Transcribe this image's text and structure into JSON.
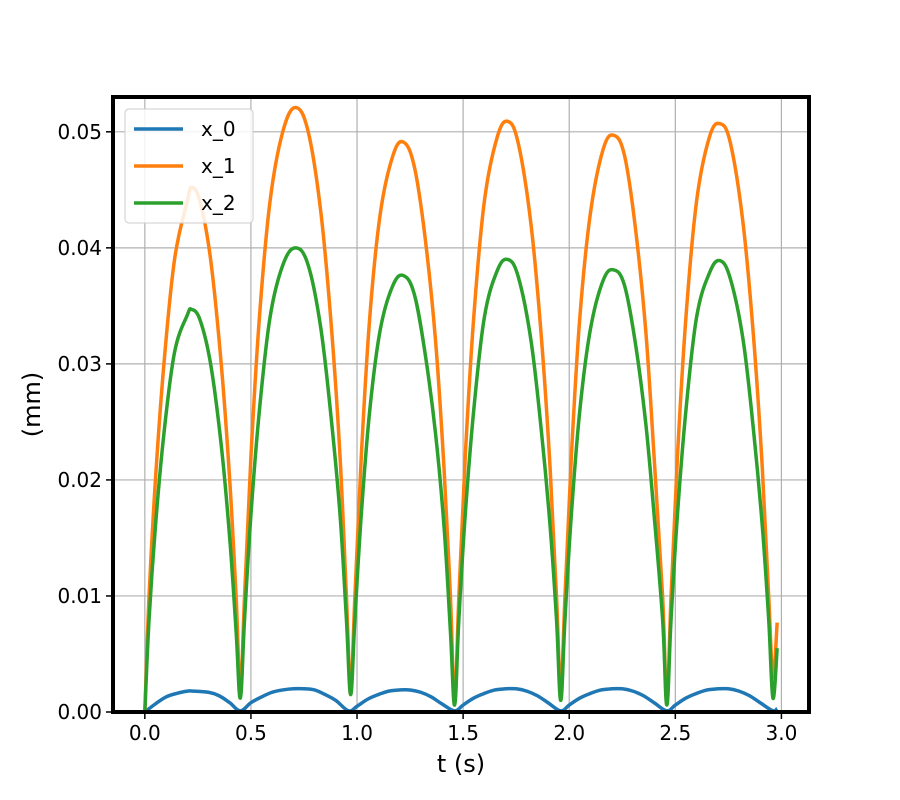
{
  "chart_data": {
    "type": "line",
    "title": "",
    "xlabel": "t (s)",
    "ylabel": "(mm)",
    "xlim": [
      -0.15,
      3.13
    ],
    "ylim": [
      0.0,
      0.053
    ],
    "x_ticks": [
      "0.0",
      "0.5",
      "1.0",
      "1.5",
      "2.0",
      "2.5",
      "3.0"
    ],
    "y_ticks": [
      "0.00",
      "0.01",
      "0.02",
      "0.03",
      "0.04",
      "0.05"
    ],
    "grid": true,
    "legend_position": "top-left",
    "series": [
      {
        "name": "x_0",
        "color": "#1f77b4",
        "points": [
          [
            0.0,
            0.0
          ],
          [
            0.05,
            0.0007
          ],
          [
            0.1,
            0.0013
          ],
          [
            0.15,
            0.0016
          ],
          [
            0.2,
            0.0018
          ],
          [
            0.23,
            0.0018
          ],
          [
            0.3,
            0.0017
          ],
          [
            0.35,
            0.0014
          ],
          [
            0.4,
            0.0008
          ],
          [
            0.45,
            0.0001
          ],
          [
            0.5,
            0.0008
          ],
          [
            0.55,
            0.0013
          ],
          [
            0.6,
            0.0017
          ],
          [
            0.65,
            0.0019
          ],
          [
            0.7,
            0.002
          ],
          [
            0.75,
            0.002
          ],
          [
            0.8,
            0.0019
          ],
          [
            0.85,
            0.0015
          ],
          [
            0.9,
            0.001
          ],
          [
            0.96,
            0.0001
          ],
          [
            1.0,
            0.0005
          ],
          [
            1.05,
            0.0011
          ],
          [
            1.1,
            0.0015
          ],
          [
            1.15,
            0.0018
          ],
          [
            1.2,
            0.0019
          ],
          [
            1.25,
            0.0019
          ],
          [
            1.3,
            0.0017
          ],
          [
            1.35,
            0.0013
          ],
          [
            1.4,
            0.0007
          ],
          [
            1.46,
            0.0001
          ],
          [
            1.5,
            0.0006
          ],
          [
            1.55,
            0.0012
          ],
          [
            1.6,
            0.0016
          ],
          [
            1.65,
            0.0019
          ],
          [
            1.7,
            0.002
          ],
          [
            1.75,
            0.002
          ],
          [
            1.8,
            0.0018
          ],
          [
            1.85,
            0.0014
          ],
          [
            1.9,
            0.0008
          ],
          [
            1.96,
            0.0001
          ],
          [
            2.0,
            0.0006
          ],
          [
            2.05,
            0.0012
          ],
          [
            2.1,
            0.0016
          ],
          [
            2.15,
            0.0019
          ],
          [
            2.2,
            0.002
          ],
          [
            2.25,
            0.002
          ],
          [
            2.3,
            0.0018
          ],
          [
            2.35,
            0.0014
          ],
          [
            2.4,
            0.0008
          ],
          [
            2.46,
            0.0001
          ],
          [
            2.5,
            0.0006
          ],
          [
            2.55,
            0.0012
          ],
          [
            2.6,
            0.0016
          ],
          [
            2.65,
            0.0019
          ],
          [
            2.7,
            0.002
          ],
          [
            2.75,
            0.002
          ],
          [
            2.8,
            0.0018
          ],
          [
            2.85,
            0.0014
          ],
          [
            2.9,
            0.0008
          ],
          [
            2.96,
            0.0001
          ],
          [
            2.98,
            0.0003
          ]
        ]
      },
      {
        "name": "x_1",
        "color": "#ff7f0e",
        "points": [
          [
            0.0,
            0.0
          ],
          [
            0.02,
            0.01
          ],
          [
            0.05,
            0.02
          ],
          [
            0.09,
            0.03
          ],
          [
            0.14,
            0.039
          ],
          [
            0.2,
            0.044
          ],
          [
            0.22,
            0.0452
          ],
          [
            0.26,
            0.044
          ],
          [
            0.31,
            0.039
          ],
          [
            0.36,
            0.03
          ],
          [
            0.4,
            0.02
          ],
          [
            0.43,
            0.01
          ],
          [
            0.45,
            0.002
          ],
          [
            0.47,
            0.01
          ],
          [
            0.5,
            0.022
          ],
          [
            0.54,
            0.034
          ],
          [
            0.59,
            0.044
          ],
          [
            0.65,
            0.05
          ],
          [
            0.71,
            0.0521
          ],
          [
            0.77,
            0.05
          ],
          [
            0.83,
            0.043
          ],
          [
            0.88,
            0.033
          ],
          [
            0.92,
            0.022
          ],
          [
            0.95,
            0.01
          ],
          [
            0.97,
            0.002
          ],
          [
            0.99,
            0.01
          ],
          [
            1.02,
            0.022
          ],
          [
            1.06,
            0.034
          ],
          [
            1.11,
            0.043
          ],
          [
            1.17,
            0.048
          ],
          [
            1.22,
            0.0491
          ],
          [
            1.27,
            0.047
          ],
          [
            1.32,
            0.041
          ],
          [
            1.37,
            0.032
          ],
          [
            1.41,
            0.021
          ],
          [
            1.44,
            0.01
          ],
          [
            1.46,
            0.001
          ],
          [
            1.48,
            0.01
          ],
          [
            1.51,
            0.022
          ],
          [
            1.55,
            0.034
          ],
          [
            1.6,
            0.044
          ],
          [
            1.66,
            0.0495
          ],
          [
            1.71,
            0.0509
          ],
          [
            1.76,
            0.049
          ],
          [
            1.82,
            0.042
          ],
          [
            1.87,
            0.032
          ],
          [
            1.91,
            0.021
          ],
          [
            1.94,
            0.01
          ],
          [
            1.96,
            0.002
          ],
          [
            1.98,
            0.01
          ],
          [
            2.01,
            0.022
          ],
          [
            2.05,
            0.034
          ],
          [
            2.1,
            0.043
          ],
          [
            2.16,
            0.0485
          ],
          [
            2.21,
            0.0497
          ],
          [
            2.26,
            0.048
          ],
          [
            2.31,
            0.042
          ],
          [
            2.36,
            0.033
          ],
          [
            2.4,
            0.022
          ],
          [
            2.44,
            0.01
          ],
          [
            2.46,
            0.001
          ],
          [
            2.48,
            0.01
          ],
          [
            2.51,
            0.022
          ],
          [
            2.55,
            0.034
          ],
          [
            2.6,
            0.044
          ],
          [
            2.66,
            0.0495
          ],
          [
            2.71,
            0.0507
          ],
          [
            2.76,
            0.049
          ],
          [
            2.82,
            0.042
          ],
          [
            2.87,
            0.032
          ],
          [
            2.91,
            0.021
          ],
          [
            2.94,
            0.01
          ],
          [
            2.96,
            0.003
          ],
          [
            2.98,
            0.0077
          ]
        ]
      },
      {
        "name": "x_2",
        "color": "#2ca02c",
        "points": [
          [
            0.0,
            0.0
          ],
          [
            0.02,
            0.008
          ],
          [
            0.05,
            0.016
          ],
          [
            0.09,
            0.024
          ],
          [
            0.14,
            0.031
          ],
          [
            0.2,
            0.0342
          ],
          [
            0.22,
            0.0347
          ],
          [
            0.26,
            0.0338
          ],
          [
            0.31,
            0.03
          ],
          [
            0.36,
            0.023
          ],
          [
            0.4,
            0.015
          ],
          [
            0.43,
            0.007
          ],
          [
            0.45,
            0.0012
          ],
          [
            0.47,
            0.008
          ],
          [
            0.5,
            0.017
          ],
          [
            0.54,
            0.026
          ],
          [
            0.59,
            0.034
          ],
          [
            0.65,
            0.0385
          ],
          [
            0.71,
            0.04
          ],
          [
            0.77,
            0.0385
          ],
          [
            0.83,
            0.033
          ],
          [
            0.88,
            0.025
          ],
          [
            0.92,
            0.017
          ],
          [
            0.95,
            0.008
          ],
          [
            0.97,
            0.0015
          ],
          [
            0.99,
            0.008
          ],
          [
            1.02,
            0.017
          ],
          [
            1.06,
            0.026
          ],
          [
            1.11,
            0.033
          ],
          [
            1.17,
            0.0368
          ],
          [
            1.22,
            0.0376
          ],
          [
            1.27,
            0.036
          ],
          [
            1.32,
            0.031
          ],
          [
            1.37,
            0.024
          ],
          [
            1.41,
            0.016
          ],
          [
            1.44,
            0.007
          ],
          [
            1.46,
            0.0006
          ],
          [
            1.48,
            0.008
          ],
          [
            1.51,
            0.017
          ],
          [
            1.55,
            0.026
          ],
          [
            1.6,
            0.034
          ],
          [
            1.66,
            0.038
          ],
          [
            1.71,
            0.039
          ],
          [
            1.76,
            0.0375
          ],
          [
            1.82,
            0.032
          ],
          [
            1.87,
            0.024
          ],
          [
            1.91,
            0.016
          ],
          [
            1.94,
            0.008
          ],
          [
            1.96,
            0.001
          ],
          [
            1.98,
            0.008
          ],
          [
            2.01,
            0.017
          ],
          [
            2.05,
            0.026
          ],
          [
            2.1,
            0.033
          ],
          [
            2.16,
            0.0372
          ],
          [
            2.21,
            0.0381
          ],
          [
            2.26,
            0.0368
          ],
          [
            2.31,
            0.032
          ],
          [
            2.36,
            0.025
          ],
          [
            2.4,
            0.017
          ],
          [
            2.44,
            0.008
          ],
          [
            2.46,
            0.0006
          ],
          [
            2.48,
            0.008
          ],
          [
            2.51,
            0.017
          ],
          [
            2.55,
            0.026
          ],
          [
            2.6,
            0.034
          ],
          [
            2.66,
            0.0378
          ],
          [
            2.71,
            0.0389
          ],
          [
            2.76,
            0.0373
          ],
          [
            2.82,
            0.032
          ],
          [
            2.87,
            0.024
          ],
          [
            2.91,
            0.016
          ],
          [
            2.94,
            0.008
          ],
          [
            2.96,
            0.0012
          ],
          [
            2.98,
            0.0055
          ]
        ]
      }
    ]
  }
}
